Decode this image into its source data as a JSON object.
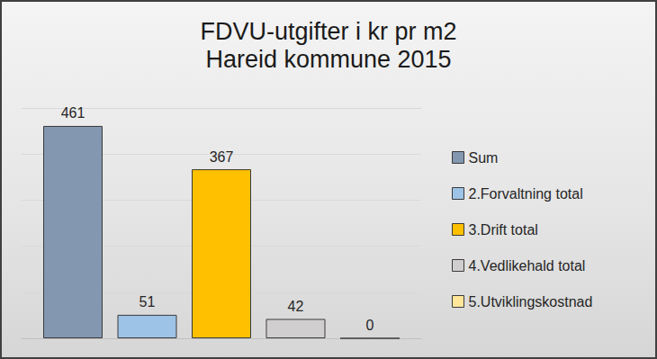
{
  "chart_data": {
    "type": "bar",
    "title": "FDVU-utgifter i kr pr m2",
    "subtitle": "Hareid kommune 2015",
    "categories": [
      null
    ],
    "series": [
      {
        "name": "Sum",
        "color": "#8497b0",
        "values": [
          461
        ]
      },
      {
        "name": "2.Forvaltning total",
        "color": "#9dc3e6",
        "values": [
          51
        ]
      },
      {
        "name": "3.Drift total",
        "color": "#ffc000",
        "values": [
          367
        ]
      },
      {
        "name": "4.Vedlikehald total",
        "color": "#d0cece",
        "values": [
          42
        ]
      },
      {
        "name": "5.Utviklingskostnad",
        "color": "#ffe699",
        "values": [
          0
        ]
      }
    ],
    "ylim": [
      0,
      500
    ],
    "yticks": [
      0,
      100,
      200,
      300,
      400,
      500
    ],
    "grid": true,
    "legend": "right",
    "data_labels": true,
    "tick_labels": false
  }
}
